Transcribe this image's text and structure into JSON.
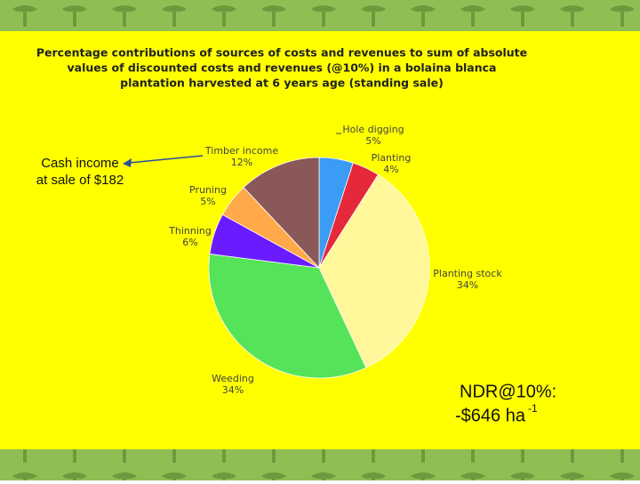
{
  "chart_data": {
    "type": "pie",
    "title": [
      "Percentage contributions of sources of costs and revenues to sum of absolute",
      "values of discounted costs and revenues (@10%) in a bolaina blanca",
      "plantation harvested at 6 years age (standing sale)"
    ],
    "categories": [
      "Hole digging",
      "Planting",
      "Planting stock",
      "Weeding",
      "Thinning",
      "Pruning",
      "Timber income"
    ],
    "values": [
      5,
      4,
      34,
      34,
      6,
      5,
      12
    ],
    "value_labels": [
      "5%",
      "4%",
      "34%",
      "34%",
      "6%",
      "5%",
      "12%"
    ],
    "colors": [
      "#3a9cf5",
      "#e5283a",
      "#fff79a",
      "#55e35a",
      "#6a1bff",
      "#ffa94a",
      "#8a5858"
    ],
    "annotations": {
      "cash": [
        "Cash income",
        "at sale of $182"
      ],
      "ndr": [
        "NDR@10%:",
        "-$646 ha",
        "-1"
      ]
    }
  }
}
